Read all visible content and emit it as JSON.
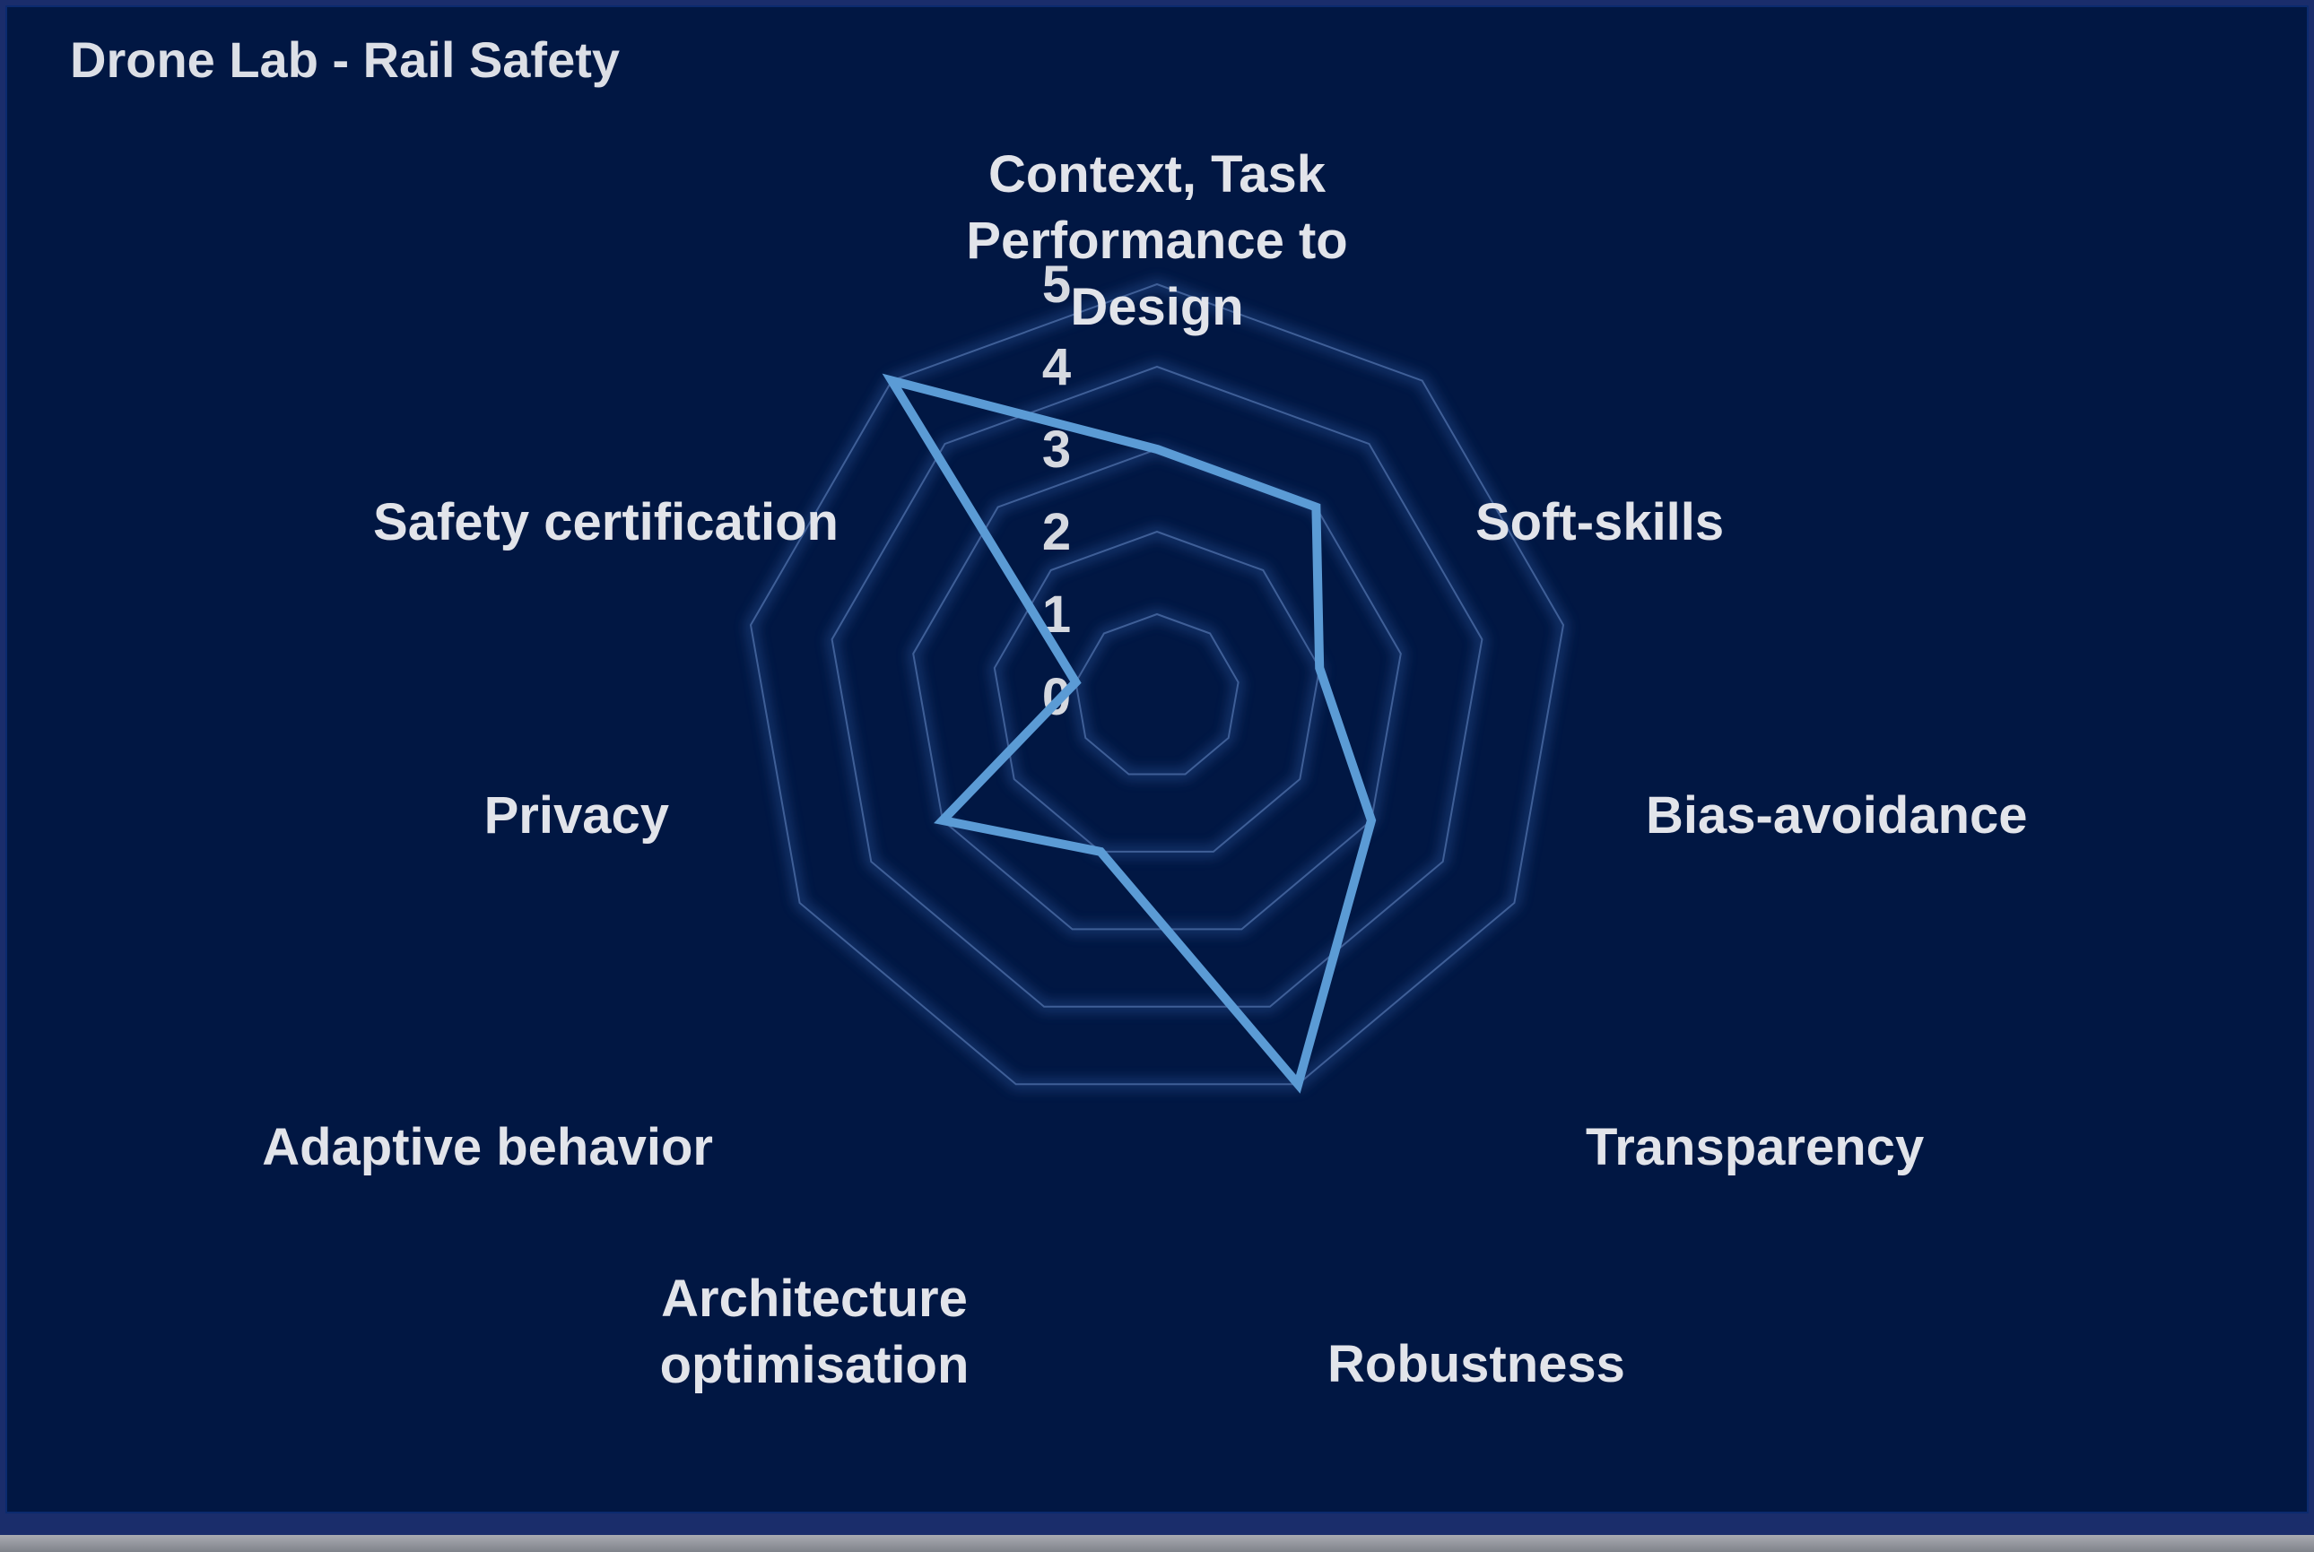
{
  "chart_data": {
    "type": "radar",
    "title": "Drone Lab - Rail Safety",
    "categories": [
      "Context, Task Performance  to Design",
      "Soft-skills",
      "Bias-avoidance",
      "Transparency",
      "Robustness",
      "Architecture optimisation",
      "Adaptive behavior",
      "Privacy",
      "Safety certification"
    ],
    "category_lines": [
      [
        "Context, Task",
        "Performance  to",
        "Design"
      ],
      [
        "Soft-skills"
      ],
      [
        "Bias-avoidance"
      ],
      [
        "Transparency"
      ],
      [
        "Robustness"
      ],
      [
        "Architecture",
        "optimisation"
      ],
      [
        "Adaptive behavior"
      ],
      [
        "Privacy"
      ],
      [
        "Safety certification"
      ]
    ],
    "series": [
      {
        "values": [
          3,
          3,
          2,
          3,
          5,
          2,
          3,
          1,
          5
        ]
      }
    ],
    "rlim": [
      0,
      5
    ],
    "ticks": [
      "0",
      "1",
      "2",
      "3",
      "4",
      "5"
    ],
    "colors": {
      "series": "#5b9bd5",
      "grid": "#3f5f97",
      "grid_glow": "#2f5aa0",
      "background": "#011743"
    }
  }
}
